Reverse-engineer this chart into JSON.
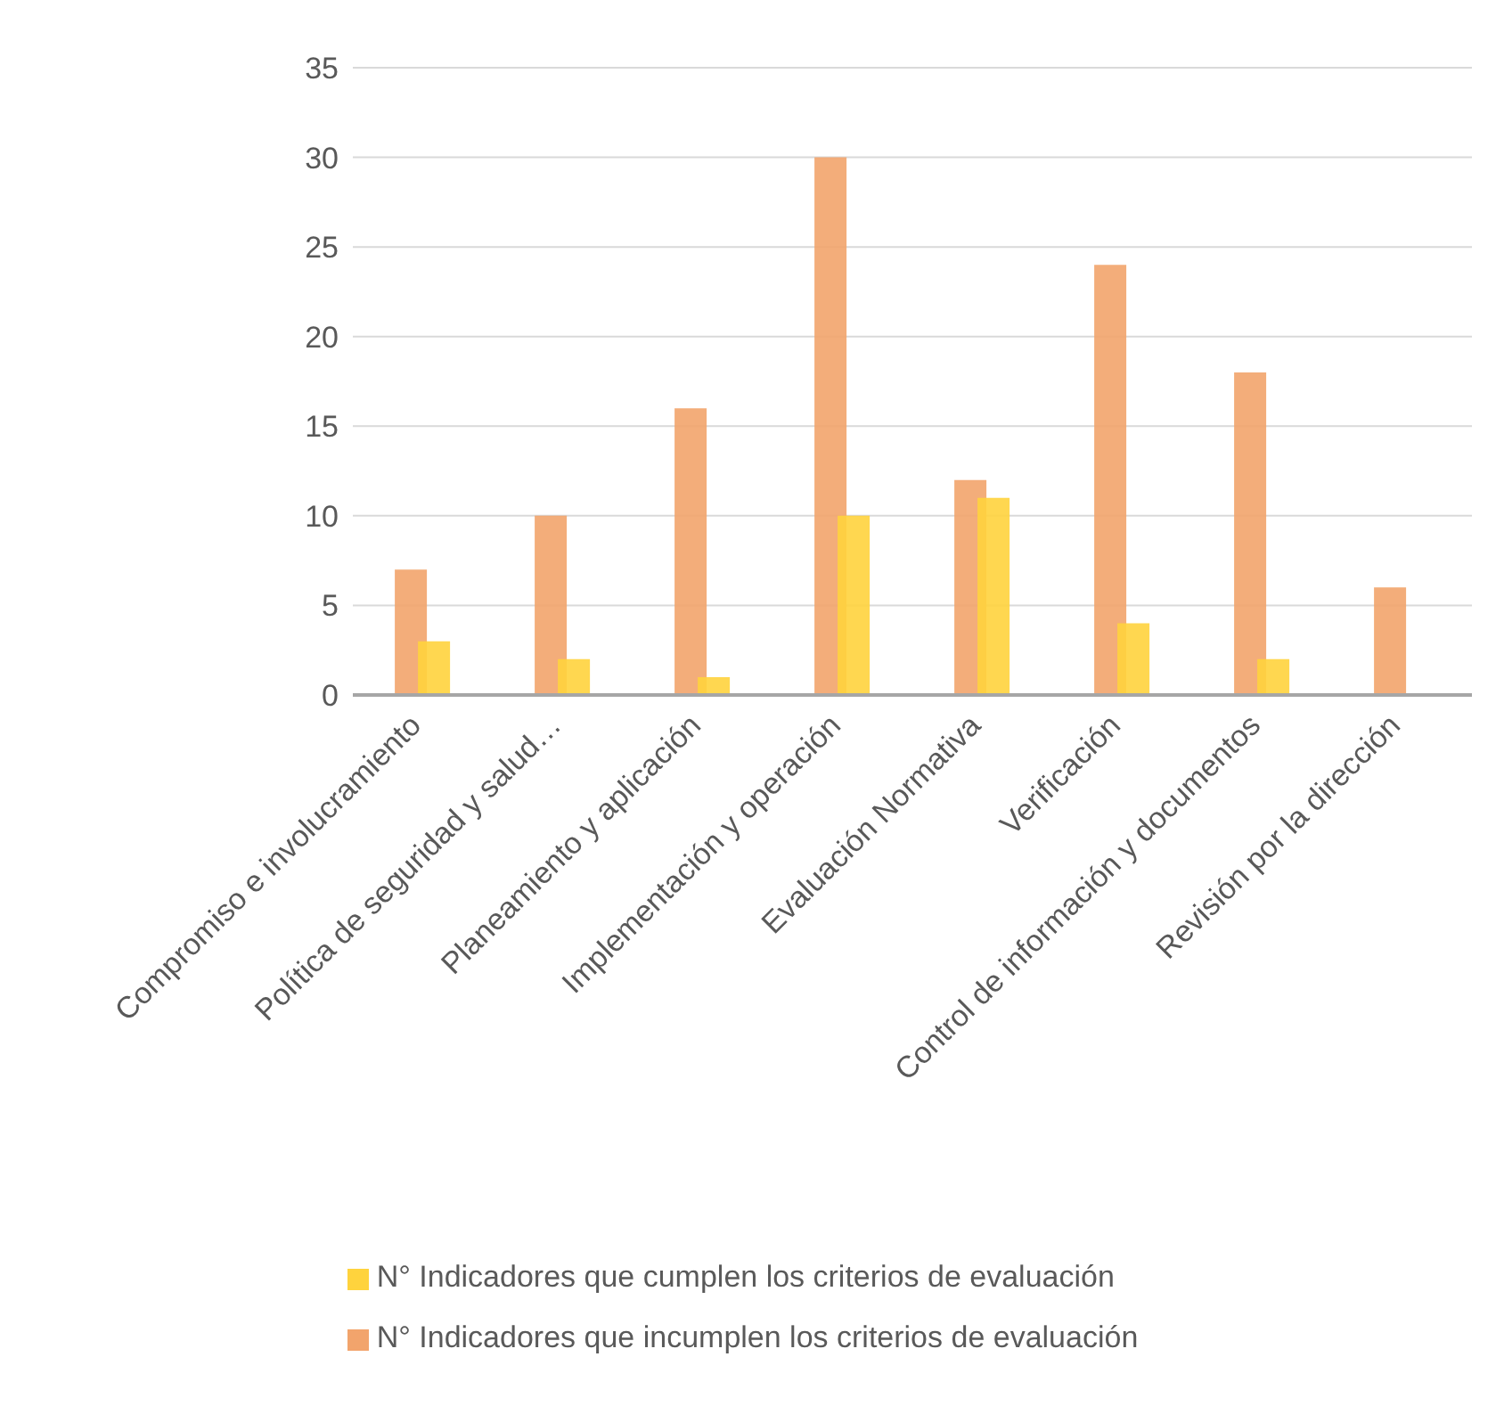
{
  "chart_data": {
    "type": "bar",
    "categories": [
      "Compromiso e involucramiento",
      "Política de seguridad y salud…",
      "Planeamiento y aplicación",
      "Implementación y operación",
      "Evaluación Normativa",
      "Verificación",
      "Control de información y documentos",
      "Revisión por la dirección"
    ],
    "series": [
      {
        "name": "N° Indicadores que incumplen los criterios de evaluación",
        "color": "#f2a46c",
        "values": [
          7,
          10,
          16,
          30,
          12,
          24,
          18,
          6
        ]
      },
      {
        "name": "N° Indicadores que cumplen los criterios de evaluación",
        "color": "#ffd33d",
        "values": [
          3,
          2,
          1,
          10,
          11,
          4,
          2,
          0
        ]
      }
    ],
    "ylim": [
      0,
      35
    ],
    "yticks": [
      0,
      5,
      10,
      15,
      20,
      25,
      30,
      35
    ],
    "grid": "y",
    "legend": "bottom"
  }
}
